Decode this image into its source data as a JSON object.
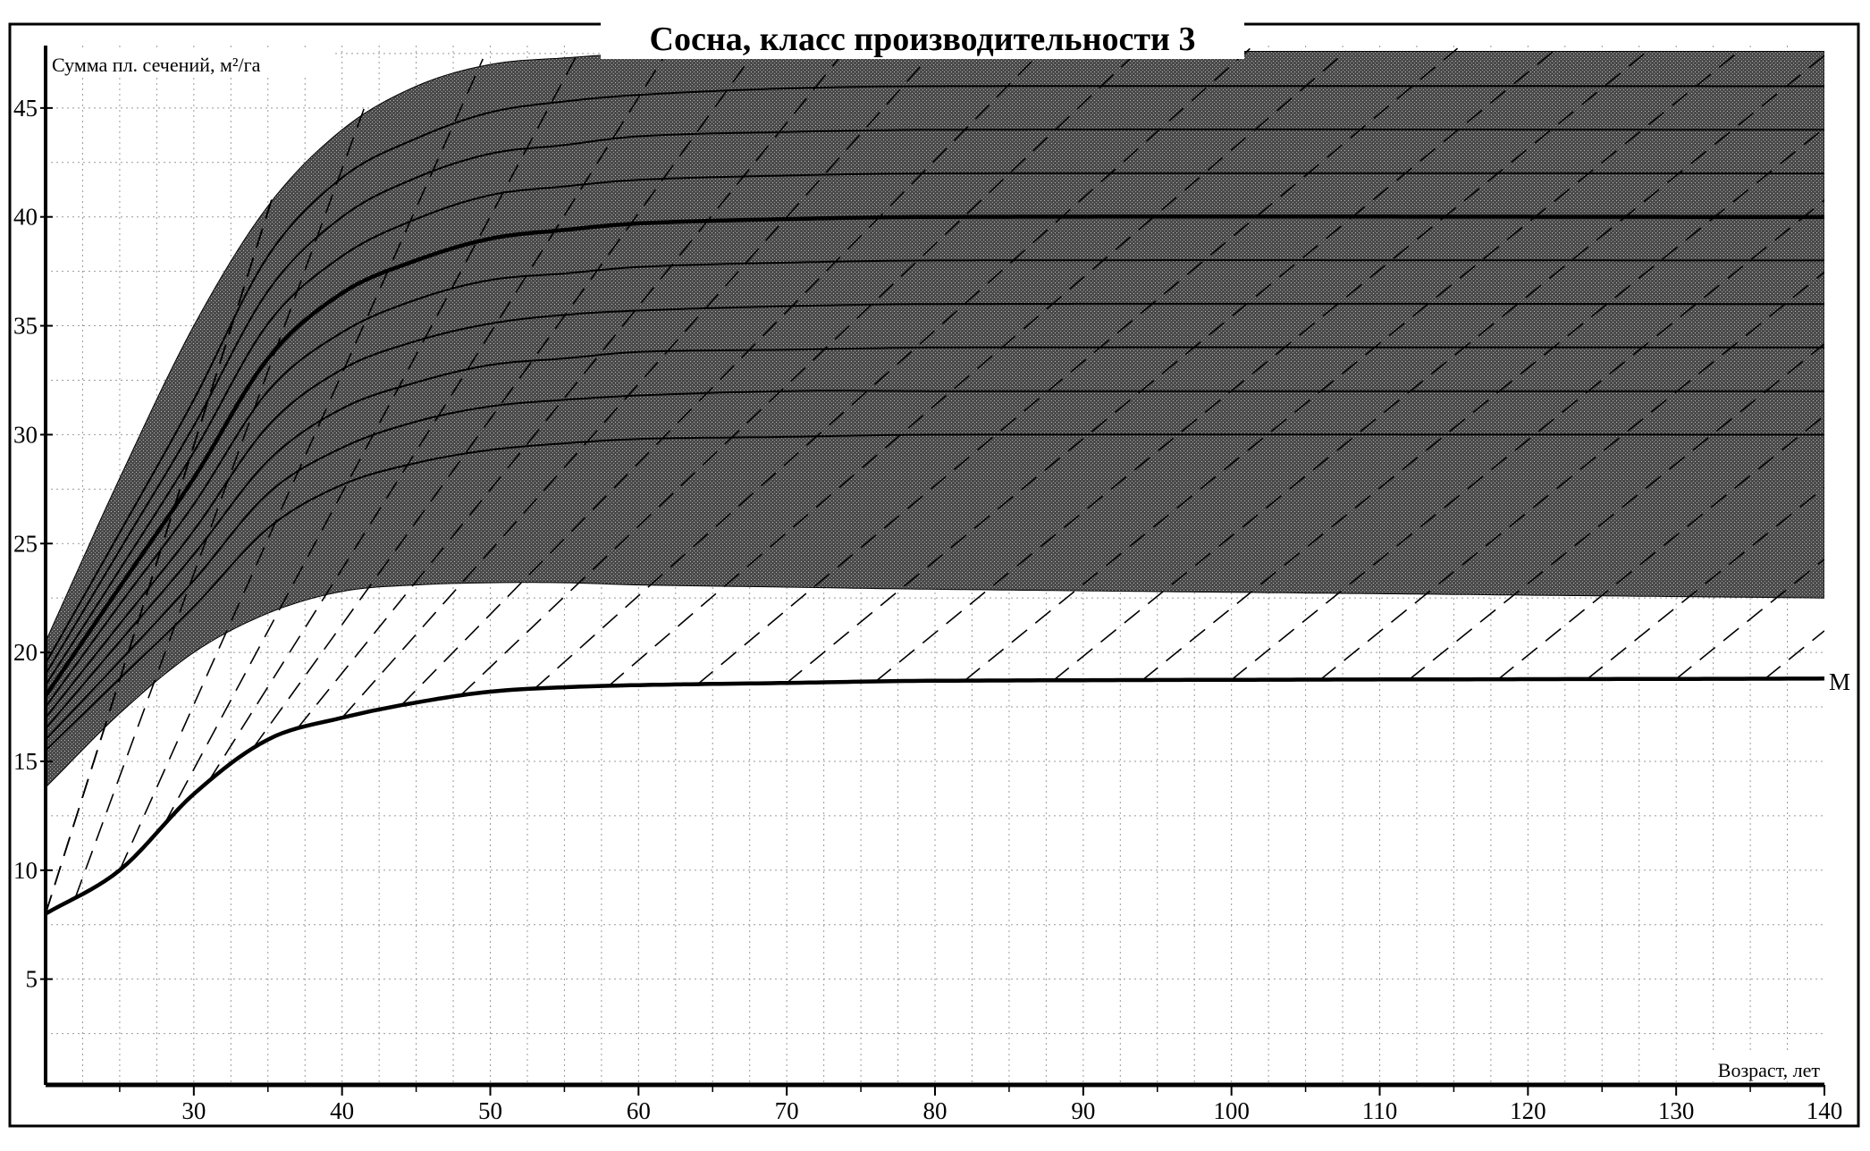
{
  "chart_data": {
    "type": "line",
    "title": "Сосна, класс производительности 3",
    "ylabel": "Сумма пл. сечений, м²/га",
    "xlabel": "Возраст, лет",
    "xlim": [
      20,
      140
    ],
    "ylim": [
      0,
      47.9
    ],
    "x_ticks": [
      30,
      40,
      50,
      60,
      70,
      80,
      90,
      100,
      110,
      120,
      130,
      140
    ],
    "y_ticks": [
      5,
      10,
      15,
      20,
      25,
      30,
      35,
      40,
      45
    ],
    "grid": true,
    "x": [
      20,
      25,
      30,
      35,
      40,
      45,
      50,
      55,
      60,
      70,
      80,
      140
    ],
    "band": {
      "name": "shaded range",
      "upper": [
        20.5,
        28,
        35,
        40.5,
        44,
        46,
        47,
        47.3,
        47.5,
        47.6,
        47.6,
        47.6
      ],
      "lower": [
        13.8,
        17.2,
        20,
        21.8,
        22.8,
        23.1,
        23.2,
        23.2,
        23.1,
        23.0,
        22.9,
        22.5
      ],
      "color": "#5a5a5a"
    },
    "series": [
      {
        "name": "46",
        "values": [
          19.5,
          25.5,
          31.6,
          38.2,
          41.8,
          43.6,
          44.8,
          45.3,
          45.6,
          45.9,
          46,
          46
        ]
      },
      {
        "name": "44",
        "values": [
          19,
          24.7,
          30.4,
          36.6,
          40,
          41.8,
          42.9,
          43.3,
          43.7,
          43.9,
          44,
          44
        ]
      },
      {
        "name": "42",
        "values": [
          18.5,
          23.8,
          29.2,
          35.1,
          38.2,
          39.9,
          41,
          41.4,
          41.7,
          41.9,
          42,
          42
        ]
      },
      {
        "name": "40",
        "values": [
          18,
          23,
          28,
          33.5,
          36.5,
          38,
          39,
          39.4,
          39.7,
          39.9,
          40,
          40
        ],
        "bold": true
      },
      {
        "name": "38",
        "values": [
          17.5,
          22.2,
          26.8,
          32,
          34.7,
          36.2,
          37.1,
          37.4,
          37.7,
          37.9,
          38,
          38
        ]
      },
      {
        "name": "36",
        "values": [
          17,
          21.3,
          25.6,
          30.4,
          33,
          34.3,
          35.1,
          35.5,
          35.7,
          35.9,
          36,
          36
        ]
      },
      {
        "name": "34",
        "values": [
          16.5,
          20.5,
          24.5,
          28.8,
          31.2,
          32.4,
          33.2,
          33.5,
          33.8,
          33.9,
          34,
          34
        ]
      },
      {
        "name": "32",
        "values": [
          16,
          19.6,
          23.3,
          27.3,
          29.4,
          30.6,
          31.3,
          31.6,
          31.8,
          32,
          32,
          32
        ]
      },
      {
        "name": "30",
        "values": [
          15.5,
          18.8,
          22.1,
          25.7,
          27.7,
          28.7,
          29.3,
          29.6,
          29.8,
          29.9,
          30,
          30
        ]
      },
      {
        "name": "M",
        "values": [
          8,
          10,
          13.5,
          16,
          17,
          17.7,
          18.2,
          18.4,
          18.5,
          18.6,
          18.7,
          18.8
        ],
        "bold": true,
        "label": "M"
      }
    ],
    "dashed_guides_start_ages": [
      6,
      10,
      14,
      18,
      20,
      22,
      25,
      28,
      31,
      34,
      37,
      40,
      44,
      48,
      53,
      58,
      64,
      70,
      76,
      82,
      88,
      94,
      100,
      106,
      112,
      118,
      124,
      130,
      136
    ]
  }
}
